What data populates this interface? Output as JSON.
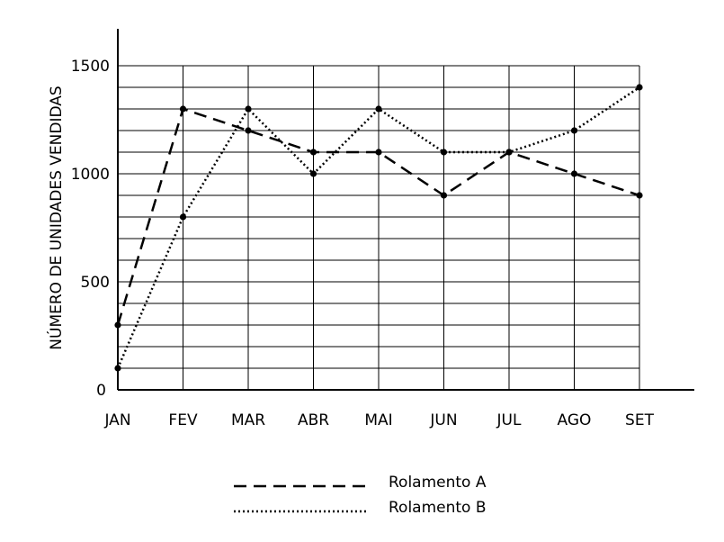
{
  "chart_data": {
    "type": "line",
    "categories": [
      "JAN",
      "FEV",
      "MAR",
      "ABR",
      "MAI",
      "JUN",
      "JUL",
      "AGO",
      "SET"
    ],
    "series": [
      {
        "name": "Rolamento A",
        "style": "dashed",
        "values": [
          300,
          1300,
          1200,
          1100,
          1100,
          900,
          1100,
          1000,
          900
        ]
      },
      {
        "name": "Rolamento B",
        "style": "dotted",
        "values": [
          100,
          800,
          1300,
          1000,
          1300,
          1100,
          1100,
          1200,
          1400
        ]
      }
    ],
    "ylabel": "NÚMERO DE UNIDADES VENDIDAS",
    "xlabel": "",
    "ylim": [
      0,
      1500
    ],
    "yticks": [
      0,
      500,
      1000,
      1500
    ],
    "grid": true,
    "legend_position": "bottom-center",
    "colors": {
      "line": "#000000",
      "grid": "#000000",
      "background": "#ffffff"
    }
  }
}
